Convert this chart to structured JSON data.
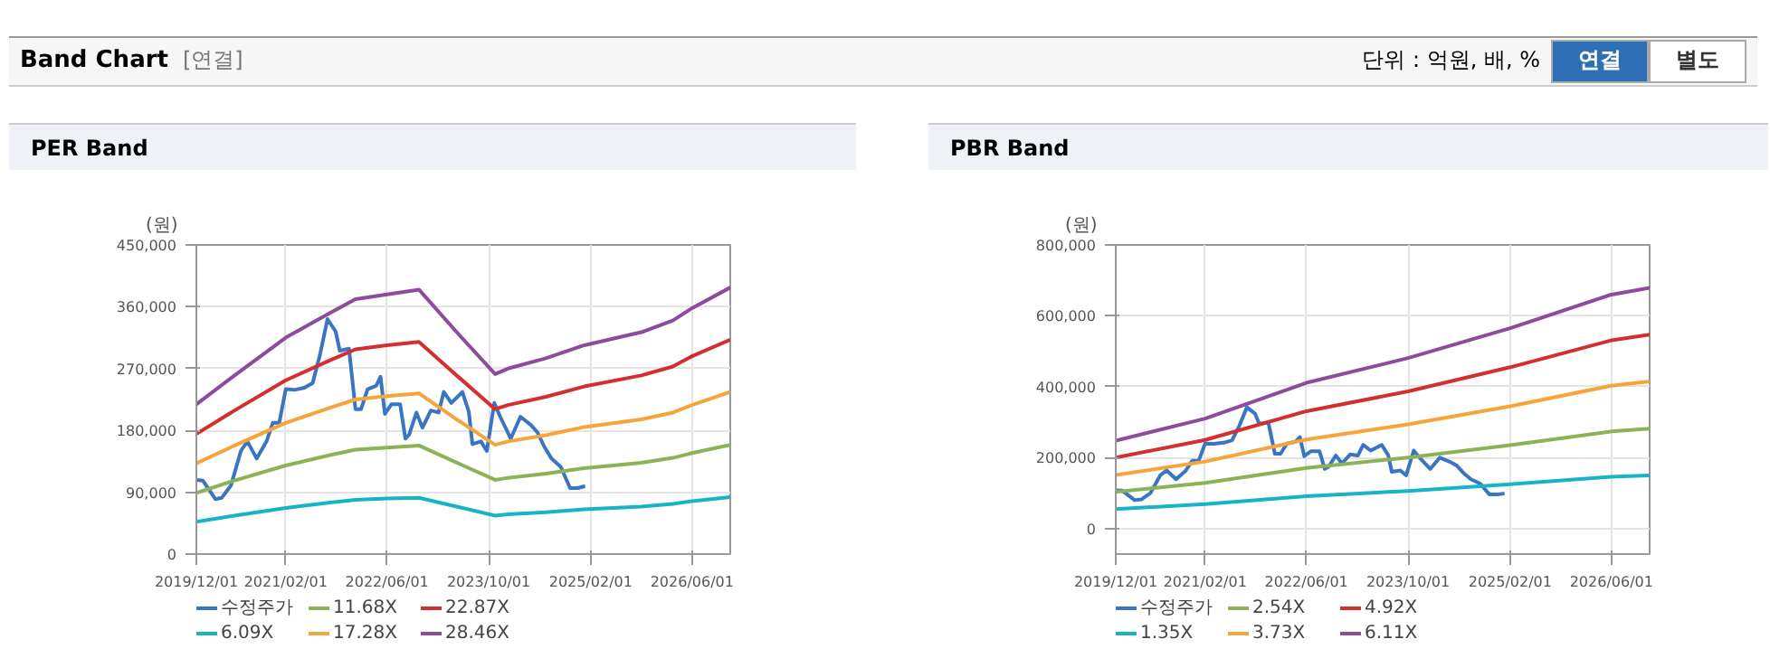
{
  "chart_data": [
    {
      "type": "other",
      "title": "Band Chart",
      "annotations": [
        "[연결]",
        "단위 : 억원, 배, %",
        "연결",
        "별도"
      ]
    },
    {
      "type": "line",
      "title": "PER Band",
      "ylabel": "(원)",
      "grid": true,
      "legend": "bottom",
      "line_style": "solid",
      "xlim": [
        "2019-12-01",
        "2026-12-01"
      ],
      "xticks": [
        {
          "value": "2019-12-01",
          "label": "2019/12/01"
        },
        {
          "value": "2021-02-01",
          "label": "2021/02/01"
        },
        {
          "value": "2022-06-01",
          "label": "2022/06/01"
        },
        {
          "value": "2023-10-01",
          "label": "2023/10/01"
        },
        {
          "value": "2025-02-01",
          "label": "2025/02/01"
        },
        {
          "value": "2026-06-01",
          "label": "2026/06/01"
        }
      ],
      "ylim": [
        0,
        450000
      ],
      "yticks": [
        0,
        {
          "value": 90000,
          "label": "90,000"
        },
        {
          "value": 180000,
          "label": "180,000"
        },
        {
          "value": 270000,
          "label": "270,000"
        },
        {
          "value": 360000,
          "label": "360,000"
        },
        {
          "value": 450000,
          "label": "450,000"
        }
      ],
      "series": [
        {
          "name": "수정주가",
          "color": "#3a75c4",
          "x": [
            "2019-12-01",
            "2020-01-01",
            "2020-03-01",
            "2020-04-01",
            "2020-05-15",
            "2020-07-01",
            "2020-08-01",
            "2020-09-15",
            "2020-11-01",
            "2020-12-01",
            "2021-01-01",
            "2021-02-01",
            "2021-03-15",
            "2021-05-01",
            "2021-06-10",
            "2021-07-15",
            "2021-08-20",
            "2021-09-28",
            "2021-10-18",
            "2021-12-01",
            "2022-01-01",
            "2022-01-28",
            "2022-02-28",
            "2022-04-10",
            "2022-05-01",
            "2022-05-22",
            "2022-06-22",
            "2022-08-03",
            "2022-08-28",
            "2022-09-15",
            "2022-10-20",
            "2022-11-18",
            "2022-12-28",
            "2023-02-03",
            "2023-02-28",
            "2023-04-05",
            "2023-05-28",
            "2023-06-28",
            "2023-07-15",
            "2023-08-25",
            "2023-09-22",
            "2023-10-28",
            "2023-11-25",
            "2024-01-15",
            "2024-03-01",
            "2024-04-20",
            "2024-05-22",
            "2024-06-22",
            "2024-07-28",
            "2024-09-10",
            "2024-10-25",
            "2024-12-01",
            "2025-01-05"
          ],
          "values": [
            108000,
            107000,
            80000,
            82000,
            100000,
            150000,
            164000,
            139000,
            164000,
            191000,
            191000,
            240000,
            239000,
            242000,
            249000,
            290000,
            342000,
            324000,
            296000,
            299000,
            211000,
            211000,
            240000,
            245000,
            258000,
            204000,
            218000,
            218000,
            168000,
            174000,
            206000,
            184000,
            209000,
            206000,
            236000,
            220000,
            236000,
            207000,
            160000,
            164000,
            150000,
            220000,
            200000,
            168000,
            200000,
            188000,
            177000,
            157000,
            139000,
            127000,
            96000,
            96000,
            99000
          ]
        },
        {
          "name": "6.09X",
          "color": "#17b4c8",
          "x": [
            "2019-12-01",
            "2020-06-01",
            "2021-02-01",
            "2021-09-01",
            "2022-01-01",
            "2022-06-01",
            "2022-11-01",
            "2023-05-01",
            "2023-11-01",
            "2024-01-01",
            "2024-07-01",
            "2025-01-01",
            "2025-10-01",
            "2026-03-01",
            "2026-06-01",
            "2026-12-01"
          ],
          "values": [
            47000,
            56000,
            67000,
            75000,
            79000,
            81000,
            82000,
            69000,
            56000,
            58000,
            61000,
            65000,
            69000,
            73000,
            77000,
            83000
          ]
        },
        {
          "name": "11.68X",
          "color": "#8db255",
          "x": [
            "2019-12-01",
            "2020-06-01",
            "2021-02-01",
            "2021-09-01",
            "2022-01-01",
            "2022-06-01",
            "2022-11-01",
            "2023-05-01",
            "2023-11-01",
            "2024-01-01",
            "2024-07-01",
            "2025-01-01",
            "2025-10-01",
            "2026-03-01",
            "2026-06-01",
            "2026-12-01"
          ],
          "values": [
            89000,
            107000,
            129000,
            144000,
            152000,
            155000,
            158000,
            133000,
            108000,
            111000,
            117000,
            125000,
            133000,
            140000,
            147000,
            159000
          ]
        },
        {
          "name": "17.28X",
          "color": "#f5a53a",
          "x": [
            "2019-12-01",
            "2020-06-01",
            "2021-02-01",
            "2021-09-01",
            "2022-01-01",
            "2022-06-01",
            "2022-11-01",
            "2023-05-01",
            "2023-11-01",
            "2024-01-01",
            "2024-07-01",
            "2025-01-01",
            "2025-10-01",
            "2026-03-01",
            "2026-06-01",
            "2026-12-01"
          ],
          "values": [
            132000,
            158000,
            191000,
            213000,
            225000,
            230000,
            234000,
            196000,
            159000,
            164000,
            173000,
            185000,
            196000,
            206000,
            217000,
            236000
          ]
        },
        {
          "name": "22.87X",
          "color": "#d32f2f",
          "x": [
            "2019-12-01",
            "2020-06-01",
            "2021-02-01",
            "2021-09-01",
            "2022-01-01",
            "2022-06-01",
            "2022-11-01",
            "2023-05-01",
            "2023-11-01",
            "2024-01-01",
            "2024-07-01",
            "2025-01-01",
            "2025-10-01",
            "2026-03-01",
            "2026-06-01",
            "2026-12-01"
          ],
          "values": [
            175000,
            209000,
            253000,
            282000,
            298000,
            304000,
            309000,
            260000,
            211000,
            217000,
            229000,
            244000,
            260000,
            273000,
            288000,
            312000
          ]
        },
        {
          "name": "28.46X",
          "color": "#8e4a9c",
          "x": [
            "2019-12-01",
            "2020-06-01",
            "2021-02-01",
            "2021-09-01",
            "2022-01-01",
            "2022-06-01",
            "2022-11-01",
            "2023-05-01",
            "2023-11-01",
            "2024-01-01",
            "2024-07-01",
            "2025-01-01",
            "2025-10-01",
            "2026-03-01",
            "2026-06-01",
            "2026-12-01"
          ],
          "values": [
            218000,
            260000,
            315000,
            351000,
            371000,
            378000,
            385000,
            323000,
            262000,
            270000,
            285000,
            304000,
            323000,
            340000,
            358000,
            388000
          ]
        }
      ]
    },
    {
      "type": "line",
      "title": "PBR Band",
      "ylabel": "(원)",
      "grid": true,
      "legend": "bottom",
      "line_style": "solid",
      "xlim": [
        "2019-12-01",
        "2026-12-01"
      ],
      "xticks": [
        {
          "value": "2019-12-01",
          "label": "2019/12/01"
        },
        {
          "value": "2021-02-01",
          "label": "2021/02/01"
        },
        {
          "value": "2022-06-01",
          "label": "2022/06/01"
        },
        {
          "value": "2023-10-01",
          "label": "2023/10/01"
        },
        {
          "value": "2025-02-01",
          "label": "2025/02/01"
        },
        {
          "value": "2026-06-01",
          "label": "2026/06/01"
        }
      ],
      "ylim": [
        -72000,
        800000
      ],
      "yticks": [
        0,
        {
          "value": 200000,
          "label": "200,000"
        },
        {
          "value": 400000,
          "label": "400,000"
        },
        {
          "value": 600000,
          "label": "600,000"
        },
        {
          "value": 800000,
          "label": "800,000"
        }
      ],
      "series": [
        {
          "name": "수정주가",
          "color": "#3a75c4",
          "x": [
            "2019-12-01",
            "2020-01-01",
            "2020-03-01",
            "2020-04-01",
            "2020-05-15",
            "2020-07-01",
            "2020-08-01",
            "2020-09-15",
            "2020-11-01",
            "2020-12-01",
            "2021-01-01",
            "2021-02-01",
            "2021-03-15",
            "2021-05-01",
            "2021-06-10",
            "2021-07-15",
            "2021-08-20",
            "2021-09-28",
            "2021-10-18",
            "2021-12-01",
            "2022-01-01",
            "2022-01-28",
            "2022-02-28",
            "2022-04-10",
            "2022-05-01",
            "2022-05-22",
            "2022-06-22",
            "2022-08-03",
            "2022-08-28",
            "2022-09-15",
            "2022-10-20",
            "2022-11-18",
            "2022-12-28",
            "2023-02-03",
            "2023-02-28",
            "2023-04-05",
            "2023-05-28",
            "2023-06-28",
            "2023-07-15",
            "2023-08-25",
            "2023-09-22",
            "2023-10-28",
            "2023-11-25",
            "2024-01-15",
            "2024-03-01",
            "2024-04-20",
            "2024-05-22",
            "2024-06-22",
            "2024-07-28",
            "2024-09-10",
            "2024-10-25",
            "2024-12-01",
            "2025-01-05"
          ],
          "values": [
            108000,
            107000,
            80000,
            82000,
            100000,
            150000,
            164000,
            139000,
            164000,
            191000,
            191000,
            240000,
            239000,
            242000,
            249000,
            290000,
            342000,
            324000,
            296000,
            299000,
            211000,
            211000,
            240000,
            245000,
            258000,
            204000,
            218000,
            218000,
            168000,
            174000,
            206000,
            184000,
            209000,
            206000,
            236000,
            220000,
            236000,
            207000,
            160000,
            164000,
            150000,
            220000,
            200000,
            168000,
            200000,
            188000,
            177000,
            157000,
            139000,
            127000,
            96000,
            96000,
            99000
          ]
        },
        {
          "name": "1.35X",
          "color": "#17b4c8",
          "x": [
            "2019-12-01",
            "2021-02-01",
            "2022-06-01",
            "2023-10-01",
            "2025-02-01",
            "2026-06-01",
            "2026-12-01"
          ],
          "values": [
            55000,
            69000,
            91000,
            106000,
            125000,
            146000,
            150000
          ]
        },
        {
          "name": "2.54X",
          "color": "#8db255",
          "x": [
            "2019-12-01",
            "2021-02-01",
            "2022-06-01",
            "2023-10-01",
            "2025-02-01",
            "2026-06-01",
            "2026-12-01"
          ],
          "values": [
            103000,
            129000,
            171000,
            200000,
            235000,
            274000,
            282000
          ]
        },
        {
          "name": "3.73X",
          "color": "#f5a53a",
          "x": [
            "2019-12-01",
            "2021-02-01",
            "2022-06-01",
            "2023-10-01",
            "2025-02-01",
            "2026-06-01",
            "2026-12-01"
          ],
          "values": [
            151000,
            189000,
            251000,
            294000,
            345000,
            403000,
            415000
          ]
        },
        {
          "name": "4.92X",
          "color": "#d32f2f",
          "x": [
            "2019-12-01",
            "2021-02-01",
            "2022-06-01",
            "2023-10-01",
            "2025-02-01",
            "2026-06-01",
            "2026-12-01"
          ],
          "values": [
            200000,
            250000,
            331000,
            387000,
            455000,
            531000,
            547000
          ]
        },
        {
          "name": "6.11X",
          "color": "#8e4a9c",
          "x": [
            "2019-12-01",
            "2021-02-01",
            "2022-06-01",
            "2023-10-01",
            "2025-02-01",
            "2026-06-01",
            "2026-12-01"
          ],
          "values": [
            248000,
            310000,
            411000,
            481000,
            565000,
            660000,
            679000
          ]
        }
      ]
    }
  ]
}
